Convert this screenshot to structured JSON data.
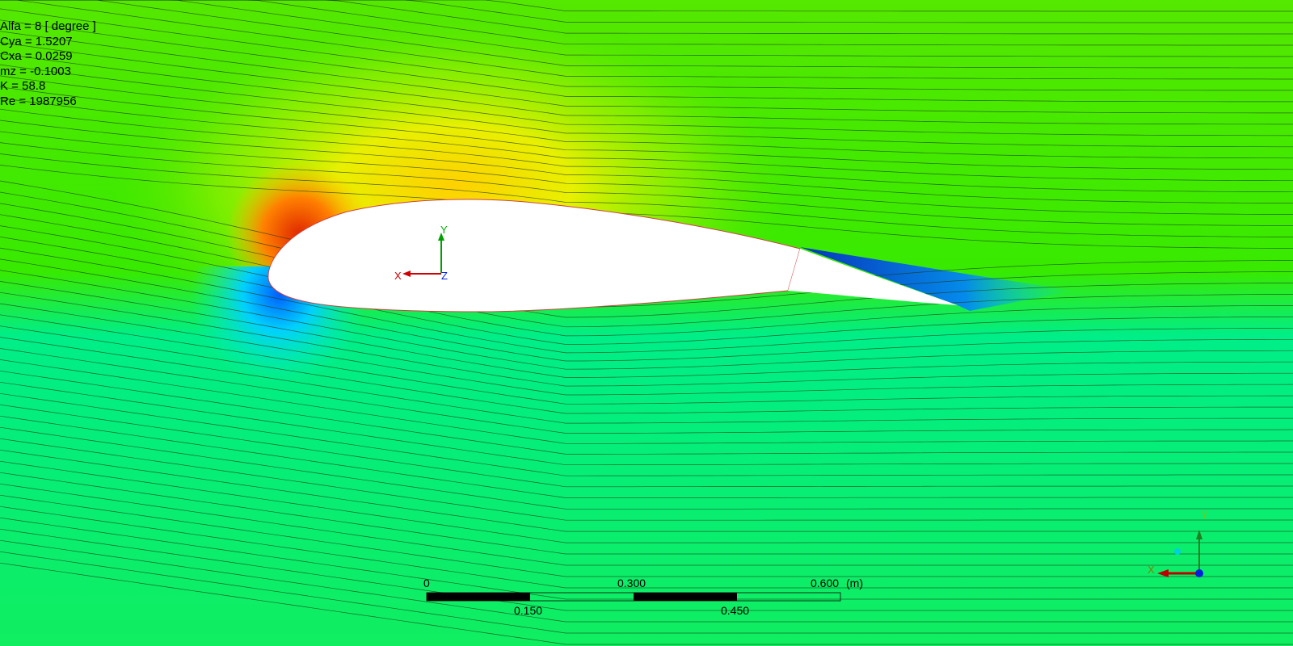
{
  "results": {
    "lines": [
      "Alfa = 8 [ degree ]",
      "Cya = 1.5207",
      "Cxa = 0.0259",
      "mz = -0.1003",
      "K = 58.8",
      "Re = 1987956"
    ]
  },
  "scale_bar": {
    "top_labels": [
      "0",
      "0.300",
      "0.600"
    ],
    "bottom_labels": [
      "0.150",
      "0.450"
    ],
    "unit": "(m)"
  },
  "triad": {
    "x": "X",
    "y": "Y",
    "z": "Z"
  },
  "colors": {
    "free_stream": "#2de800",
    "suction_peak": "#e83000",
    "stagnation": "#0030e0",
    "lower_flow": "#00f07a"
  }
}
